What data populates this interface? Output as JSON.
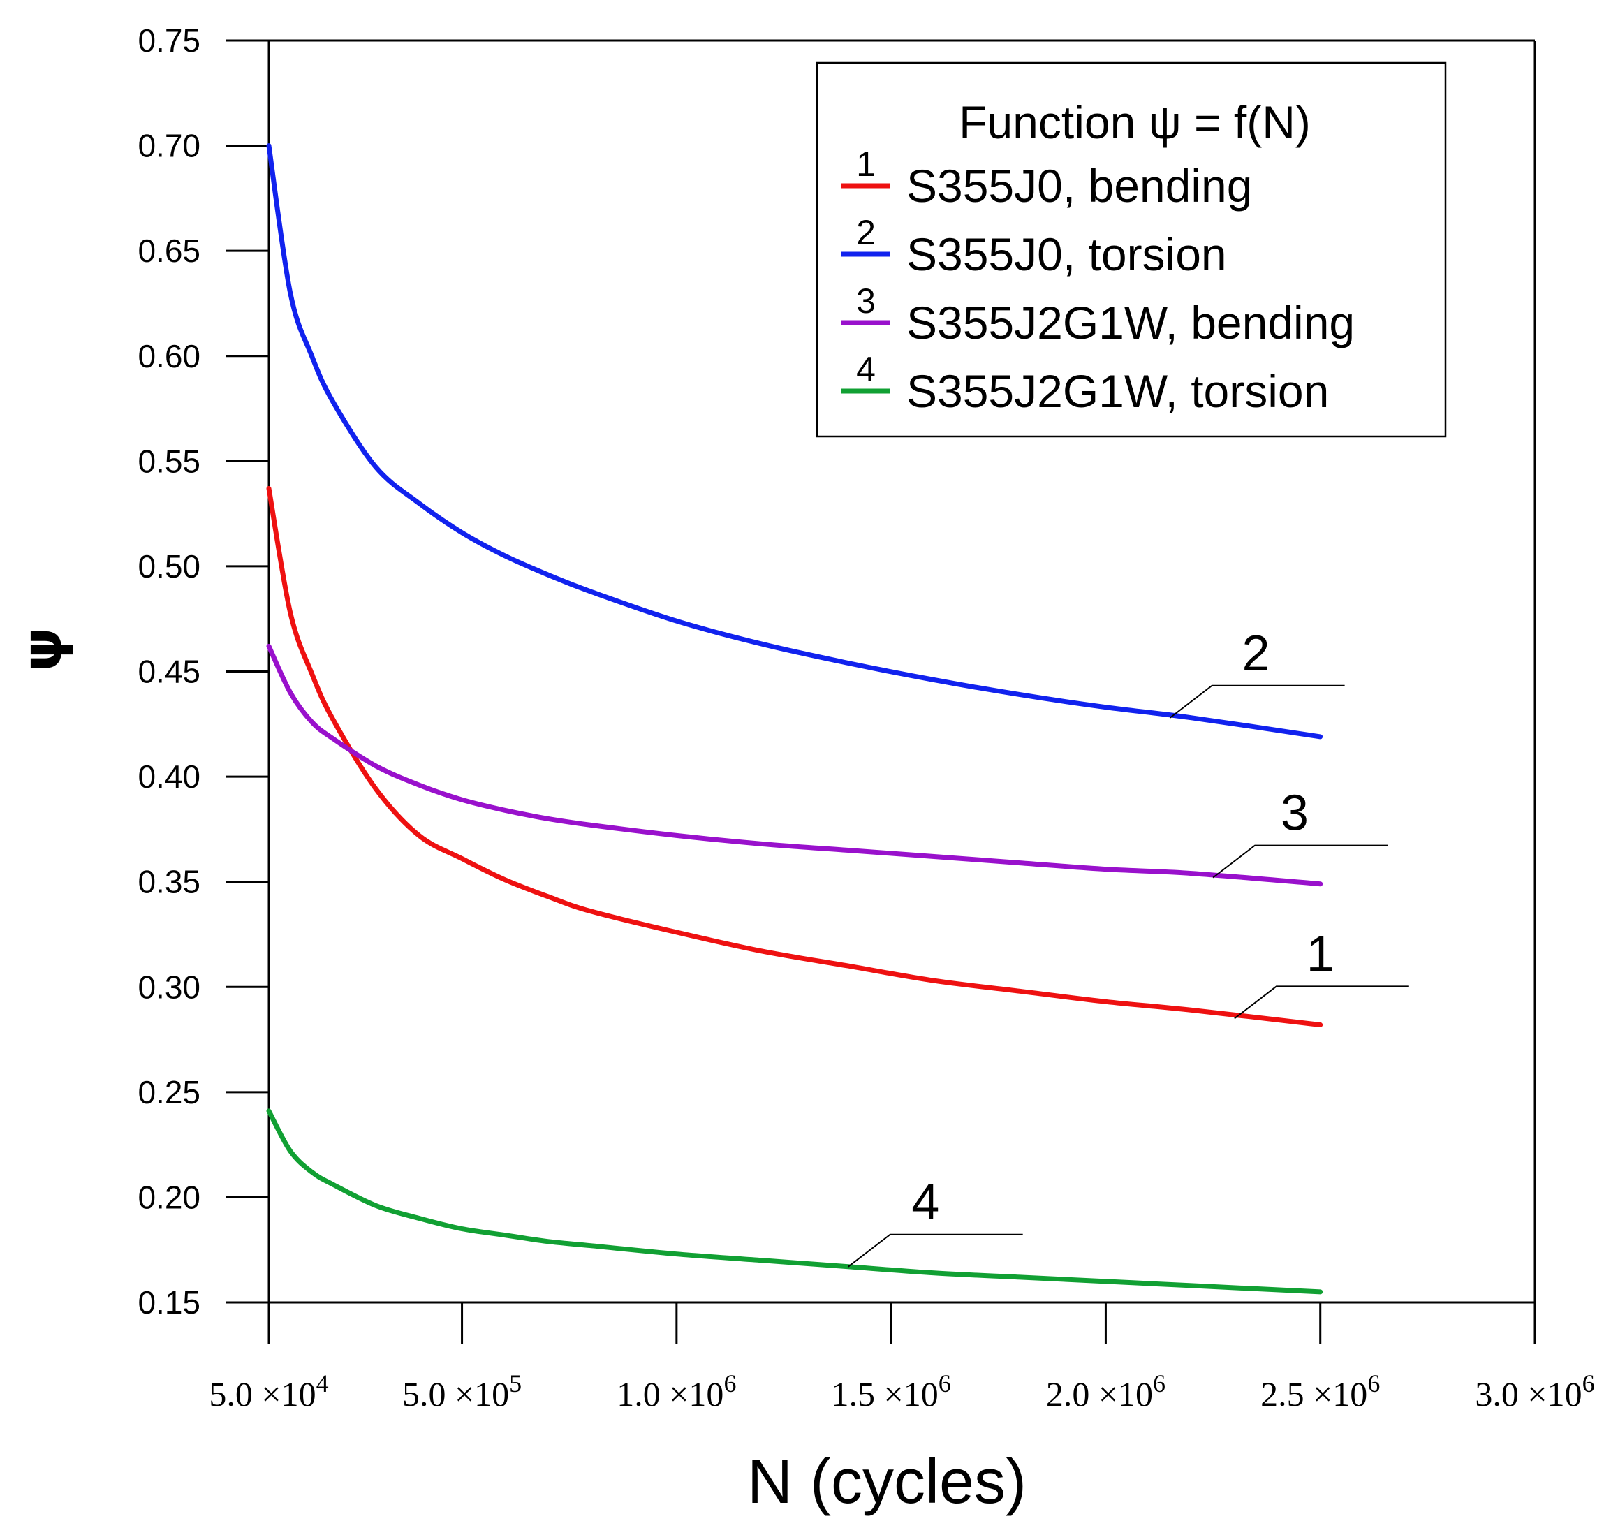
{
  "chart_data": {
    "type": "line",
    "title": "",
    "xlabel": "N (cycles)",
    "ylabel": "ψ",
    "xlim": [
      50000,
      3000000
    ],
    "ylim": [
      0.15,
      0.75
    ],
    "y_ticks": [
      "0.15",
      "0.20",
      "0.25",
      "0.30",
      "0.35",
      "0.40",
      "0.45",
      "0.50",
      "0.55",
      "0.60",
      "0.65",
      "0.70",
      "0.75"
    ],
    "x_ticks": [
      {
        "value": 50000,
        "mant": "5.0",
        "exp": "4"
      },
      {
        "value": 500000,
        "mant": "5.0",
        "exp": "5"
      },
      {
        "value": 1000000,
        "mant": "1.0",
        "exp": "6"
      },
      {
        "value": 1500000,
        "mant": "1.5",
        "exp": "6"
      },
      {
        "value": 2000000,
        "mant": "2.0",
        "exp": "6"
      },
      {
        "value": 2500000,
        "mant": "2.5",
        "exp": "6"
      },
      {
        "value": 3000000,
        "mant": "3.0",
        "exp": "6"
      }
    ],
    "x_times_symbol": "×10",
    "legend": {
      "title": "Function ψ = f(N)",
      "position": "top-right"
    },
    "series": [
      {
        "id": "1",
        "name": "S355J0, bending",
        "color": "#ee1111",
        "x": [
          50000,
          100000,
          150000,
          200000,
          300000,
          400000,
          500000,
          600000,
          700000,
          800000,
          1000000,
          1200000,
          1400000,
          1600000,
          1800000,
          2000000,
          2200000,
          2500000
        ],
        "y": [
          0.537,
          0.478,
          0.449,
          0.427,
          0.394,
          0.372,
          0.361,
          0.351,
          0.343,
          0.336,
          0.326,
          0.317,
          0.31,
          0.303,
          0.298,
          0.293,
          0.289,
          0.282
        ],
        "label_number": "1",
        "callout_x": 2300000,
        "callout_y": 0.285,
        "callout_label_x": 2500000
      },
      {
        "id": "2",
        "name": "S355J0, torsion",
        "color": "#1122ee",
        "x": [
          50000,
          100000,
          150000,
          200000,
          300000,
          400000,
          500000,
          600000,
          700000,
          800000,
          1000000,
          1200000,
          1400000,
          1600000,
          1800000,
          2000000,
          2200000,
          2500000
        ],
        "y": [
          0.7,
          0.63,
          0.6,
          0.578,
          0.547,
          0.53,
          0.516,
          0.505,
          0.496,
          0.488,
          0.474,
          0.463,
          0.454,
          0.446,
          0.439,
          0.433,
          0.428,
          0.419
        ],
        "label_number": "2",
        "callout_x": 2150000,
        "callout_y": 0.428,
        "callout_label_x": 2350000
      },
      {
        "id": "3",
        "name": "S355J2G1W, bending",
        "color": "#9911cc",
        "x": [
          50000,
          100000,
          150000,
          200000,
          300000,
          400000,
          500000,
          600000,
          700000,
          800000,
          1000000,
          1200000,
          1400000,
          1600000,
          1800000,
          2000000,
          2200000,
          2500000
        ],
        "y": [
          0.462,
          0.44,
          0.426,
          0.418,
          0.405,
          0.396,
          0.389,
          0.384,
          0.38,
          0.377,
          0.372,
          0.368,
          0.365,
          0.362,
          0.359,
          0.356,
          0.354,
          0.349
        ],
        "label_number": "3",
        "callout_x": 2250000,
        "callout_y": 0.352,
        "callout_label_x": 2440000
      },
      {
        "id": "4",
        "name": "S355J2G1W, torsion",
        "color": "#11a033",
        "x": [
          50000,
          100000,
          150000,
          200000,
          300000,
          400000,
          500000,
          600000,
          700000,
          800000,
          1000000,
          1200000,
          1400000,
          1600000,
          1800000,
          2000000,
          2200000,
          2500000
        ],
        "y": [
          0.241,
          0.222,
          0.212,
          0.206,
          0.196,
          0.19,
          0.185,
          0.182,
          0.179,
          0.177,
          0.173,
          0.17,
          0.167,
          0.164,
          0.162,
          0.16,
          0.158,
          0.155
        ],
        "label_number": "4",
        "callout_x": 1400000,
        "callout_y": 0.167,
        "callout_label_x": 1580000
      }
    ]
  }
}
